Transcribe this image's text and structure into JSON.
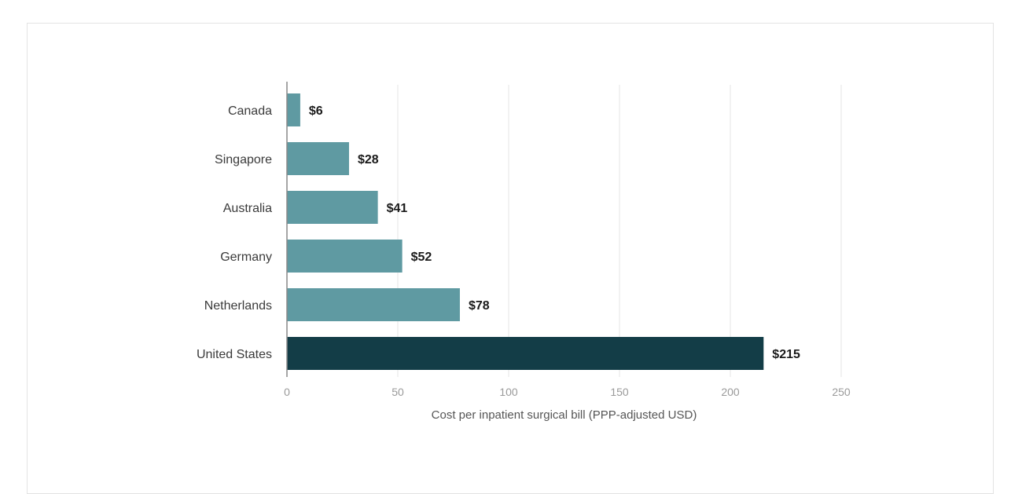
{
  "chart_data": {
    "type": "bar",
    "orientation": "horizontal",
    "categories": [
      "Canada",
      "Singapore",
      "Australia",
      "Germany",
      "Netherlands",
      "United States"
    ],
    "values": [
      6,
      28,
      41,
      52,
      78,
      215
    ],
    "value_labels": [
      "$6",
      "$28",
      "$41",
      "$52",
      "$78",
      "$215"
    ],
    "xlabel": "Cost per inpatient surgical bill (PPP-adjusted USD)",
    "xlim": [
      0,
      250
    ],
    "xticks": [
      0,
      50,
      100,
      150,
      200,
      250
    ],
    "grid": true,
    "colors": {
      "default_bar": "#5f9aa2",
      "highlight_bar": "#133d47",
      "gridline": "#e6e6e6",
      "baseline": "#888888"
    },
    "highlight_index": 5
  }
}
